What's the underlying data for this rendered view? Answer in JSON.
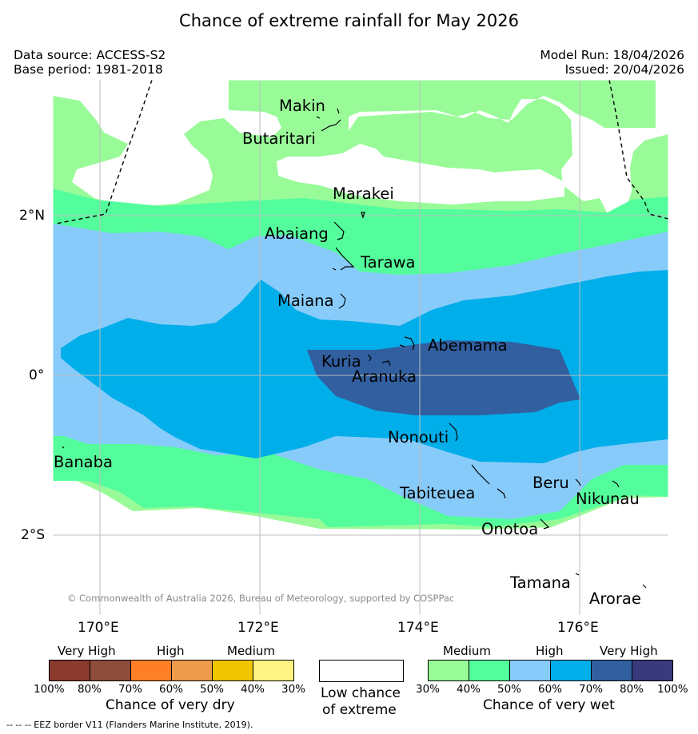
{
  "title": "Chance of extreme rainfall for May 2026",
  "data_source": "Data source: ACCESS-S2",
  "base_period": "Base period: 1981-2018",
  "model_run": "Model Run: 18/04/2026",
  "issued": "Issued: 20/04/2026",
  "map": {
    "x_ticks": [
      "170°E",
      "172°E",
      "174°E",
      "176°E"
    ],
    "y_ticks": [
      "2°N",
      "0°",
      "2°S"
    ],
    "places": [
      "Makin",
      "Butaritari",
      "Marakei",
      "Abaiang",
      "Tarawa",
      "Maiana",
      "Abemama",
      "Kuria",
      "Aranuka",
      "Nonouti",
      "Banaba",
      "Tabiteuea",
      "Beru",
      "Nikunau",
      "Onotoa",
      "Tamana",
      "Arorae"
    ],
    "copyright": "© Commonwealth of Australia 2026, Bureau of Meteorology, supported by COSPPac",
    "eez_note": "--  --  -- EEZ border V11 (Flanders Marine Institute, 2019)."
  },
  "legend": {
    "dry": {
      "headers": [
        "Very High",
        "High",
        "Medium"
      ],
      "ticks": [
        "100%",
        "80%",
        "70%",
        "60%",
        "50%",
        "40%",
        "30%"
      ],
      "colors": [
        "#8b3a2e",
        "#8e4c3a",
        "#ff7f27",
        "#ee9b4c",
        "#efc600",
        "#fff384"
      ],
      "caption": "Chance of very dry"
    },
    "neutral": {
      "caption_line1": "Low chance",
      "caption_line2": "of extreme"
    },
    "wet": {
      "headers": [
        "Medium",
        "High",
        "Very High"
      ],
      "ticks": [
        "30%",
        "40%",
        "50%",
        "60%",
        "70%",
        "80%",
        "100%"
      ],
      "colors": [
        "#98fb98",
        "#54fd9c",
        "#87cbfa",
        "#00aeea",
        "#315f9f",
        "#383a7b"
      ],
      "caption": "Chance of very wet"
    }
  }
}
